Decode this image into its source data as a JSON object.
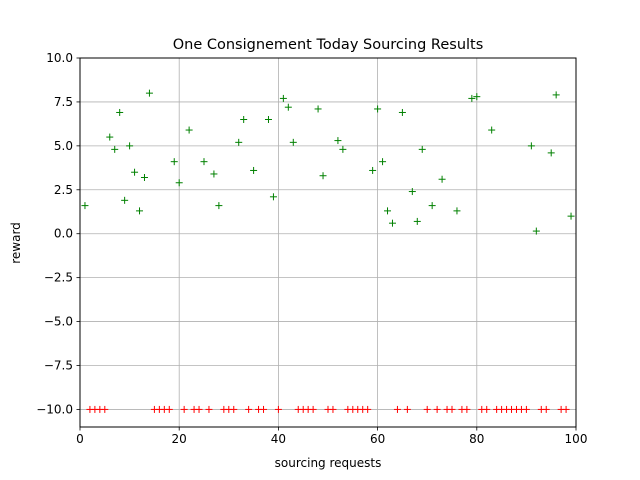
{
  "chart_data": {
    "type": "scatter",
    "title": "One Consignement Today Sourcing Results",
    "xlabel": "sourcing requests",
    "ylabel": "reward",
    "xlim": [
      0,
      100
    ],
    "ylim": [
      -11,
      10
    ],
    "xticks": [
      0,
      20,
      40,
      60,
      80,
      100
    ],
    "xtick_labels": [
      "0",
      "20",
      "40",
      "60",
      "80",
      "100"
    ],
    "yticks": [
      -10,
      -7.5,
      -5,
      -2.5,
      0,
      2.5,
      5,
      7.5,
      10
    ],
    "ytick_labels": [
      "−10.0",
      "−7.5",
      "−5.0",
      "−2.5",
      "0.0",
      "2.5",
      "5.0",
      "7.5",
      "10.0"
    ],
    "grid": true,
    "marker": "+",
    "series": [
      {
        "color": "#008000",
        "points": [
          [
            1,
            1.6
          ],
          [
            6,
            5.5
          ],
          [
            7,
            4.8
          ],
          [
            8,
            6.9
          ],
          [
            9,
            1.9
          ],
          [
            10,
            5.0
          ],
          [
            11,
            3.5
          ],
          [
            12,
            1.3
          ],
          [
            13,
            3.2
          ],
          [
            14,
            8.0
          ],
          [
            19,
            4.1
          ],
          [
            20,
            2.9
          ],
          [
            22,
            5.9
          ],
          [
            25,
            4.1
          ],
          [
            27,
            3.4
          ],
          [
            28,
            1.6
          ],
          [
            32,
            5.2
          ],
          [
            33,
            6.5
          ],
          [
            35,
            3.6
          ],
          [
            38,
            6.5
          ],
          [
            39,
            2.1
          ],
          [
            41,
            7.7
          ],
          [
            42,
            7.2
          ],
          [
            43,
            5.2
          ],
          [
            48,
            7.1
          ],
          [
            49,
            3.3
          ],
          [
            52,
            5.3
          ],
          [
            53,
            4.8
          ],
          [
            59,
            3.6
          ],
          [
            60,
            7.1
          ],
          [
            61,
            4.1
          ],
          [
            62,
            1.3
          ],
          [
            63,
            0.6
          ],
          [
            65,
            6.9
          ],
          [
            67,
            2.4
          ],
          [
            68,
            0.7
          ],
          [
            69,
            4.8
          ],
          [
            71,
            1.6
          ],
          [
            73,
            3.1
          ],
          [
            76,
            1.3
          ],
          [
            79,
            7.7
          ],
          [
            80,
            7.8
          ],
          [
            83,
            5.9
          ],
          [
            91,
            5.0
          ],
          [
            92,
            0.15
          ],
          [
            95,
            4.6
          ],
          [
            96,
            7.9
          ],
          [
            99,
            1.0
          ]
        ]
      },
      {
        "color": "#ff0000",
        "points": [
          [
            2,
            -10
          ],
          [
            3,
            -10
          ],
          [
            4,
            -10
          ],
          [
            5,
            -10
          ],
          [
            15,
            -10
          ],
          [
            16,
            -10
          ],
          [
            17,
            -10
          ],
          [
            18,
            -10
          ],
          [
            21,
            -10
          ],
          [
            23,
            -10
          ],
          [
            24,
            -10
          ],
          [
            26,
            -10
          ],
          [
            29,
            -10
          ],
          [
            30,
            -10
          ],
          [
            31,
            -10
          ],
          [
            34,
            -10
          ],
          [
            36,
            -10
          ],
          [
            37,
            -10
          ],
          [
            40,
            -10
          ],
          [
            44,
            -10
          ],
          [
            45,
            -10
          ],
          [
            46,
            -10
          ],
          [
            47,
            -10
          ],
          [
            50,
            -10
          ],
          [
            51,
            -10
          ],
          [
            54,
            -10
          ],
          [
            55,
            -10
          ],
          [
            56,
            -10
          ],
          [
            57,
            -10
          ],
          [
            58,
            -10
          ],
          [
            64,
            -10
          ],
          [
            66,
            -10
          ],
          [
            70,
            -10
          ],
          [
            72,
            -10
          ],
          [
            74,
            -10
          ],
          [
            75,
            -10
          ],
          [
            77,
            -10
          ],
          [
            78,
            -10
          ],
          [
            81,
            -10
          ],
          [
            82,
            -10
          ],
          [
            84,
            -10
          ],
          [
            85,
            -10
          ],
          [
            86,
            -10
          ],
          [
            87,
            -10
          ],
          [
            88,
            -10
          ],
          [
            89,
            -10
          ],
          [
            90,
            -10
          ],
          [
            93,
            -10
          ],
          [
            94,
            -10
          ],
          [
            97,
            -10
          ],
          [
            98,
            -10
          ]
        ]
      }
    ]
  }
}
